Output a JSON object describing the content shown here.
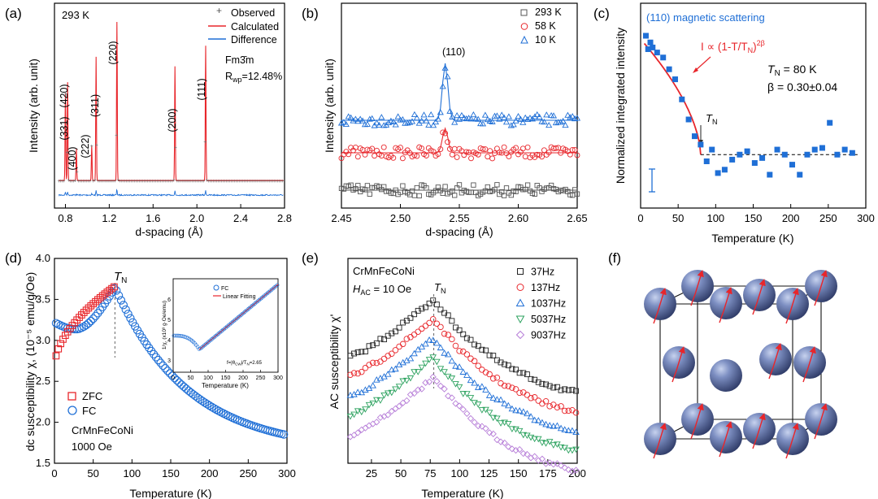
{
  "panels": {
    "a": {
      "label": "(a)",
      "temp": "293 K",
      "legend": [
        "Observed",
        "Calculated",
        "Difference"
      ],
      "space_group": "Fm3̄m",
      "rwp": "R",
      "rwp_sub": "wp",
      "rwp_val": "=12.48%",
      "peaks": [
        "(420)",
        "(331)",
        "(400)",
        "(222)",
        "(311)",
        "(220)",
        "(200)",
        "(111)"
      ]
    },
    "b": {
      "label": "(b)",
      "peak": "(110)"
    },
    "c": {
      "label": "(c)",
      "title": "(110) magnetic scattering",
      "fit_label": "I ∝ (1-T/T",
      "fit_sub": "N",
      "fit_sup": ")",
      "fit_exp": "2β",
      "tn_text": "T",
      "tn_sub": "N",
      "tn_val": " = 80 K",
      "beta_text": "β = 0.30±0.04"
    },
    "d": {
      "label": "(d)",
      "tn": "T",
      "tn_sub": "N",
      "legend": [
        "ZFC",
        "FC"
      ],
      "sample": "CrMnFeCoNi",
      "field": "1000 Oe",
      "inset": {
        "legend": [
          "FC",
          "Linear Fitting"
        ],
        "ylabel": "1/χ, (x10³ g·Oe/emu)",
        "xlabel": "Temperature (K)",
        "formula": "f=|θ",
        "formula_sub": "CW",
        "formula_mid": "|/T",
        "formula_sub2": "N",
        "formula_end": "=2.65"
      }
    },
    "e": {
      "label": "(e)",
      "sample": "CrMnFeCoNi",
      "field": "H",
      "field_sub": "AC",
      "field_val": " = 10 Oe",
      "tn": "T",
      "tn_sub": "N",
      "legend": [
        "37Hz",
        "137Hz",
        "1037Hz",
        "5037Hz",
        "9037Hz"
      ]
    },
    "f": {
      "label": "(f)"
    }
  },
  "colors": {
    "red": "#e8262b",
    "blue": "#1f6fd6",
    "black": "#222222",
    "gray": "#555555",
    "green": "#2ca25f",
    "purple": "#b77ed8",
    "sq_blue": "#1f6fd6",
    "atom": "#6b7fae"
  },
  "chart_data": [
    {
      "type": "line",
      "id": "a",
      "xlabel": "d-spacing (Å)",
      "ylabel": "Intensity (arb. unit)",
      "xlim": [
        0.7,
        2.8
      ],
      "xticks": [
        0.8,
        1.2,
        1.6,
        2.0,
        2.4,
        2.8
      ],
      "series": [
        {
          "name": "Observed"
        },
        {
          "name": "Calculated"
        },
        {
          "name": "Difference"
        }
      ],
      "peaks": [
        {
          "x": 0.8,
          "h": 0.55
        },
        {
          "x": 0.82,
          "h": 0.62
        },
        {
          "x": 0.9,
          "h": 0.2
        },
        {
          "x": 1.04,
          "h": 0.22
        },
        {
          "x": 1.08,
          "h": 0.78
        },
        {
          "x": 1.27,
          "h": 1.0
        },
        {
          "x": 1.8,
          "h": 0.72
        },
        {
          "x": 2.08,
          "h": 0.85
        }
      ]
    },
    {
      "type": "scatter",
      "id": "b",
      "xlabel": "d-spacing (Å)",
      "ylabel": "Intensity (arb. unit)",
      "xlim": [
        2.45,
        2.65
      ],
      "xticks": [
        2.45,
        2.5,
        2.55,
        2.6,
        2.65
      ],
      "series": [
        {
          "name": "293 K",
          "offset": 0.1,
          "peak": 0
        },
        {
          "name": "58 K",
          "offset": 0.42,
          "peak": 0.14
        },
        {
          "name": "10 K",
          "offset": 0.68,
          "peak": 0.3
        }
      ],
      "peak_x": 2.538
    },
    {
      "type": "scatter",
      "id": "c",
      "xlabel": "Temperature (K)",
      "ylabel": "Normalized integrated intensity",
      "xlim": [
        0,
        300
      ],
      "xticks": [
        0,
        50,
        100,
        150,
        200,
        250,
        300
      ],
      "x": [
        7,
        10,
        13,
        16,
        22,
        30,
        38,
        46,
        55,
        64,
        72,
        80,
        88,
        95,
        103,
        112,
        122,
        132,
        142,
        152,
        162,
        172,
        182,
        192,
        202,
        212,
        222,
        232,
        242,
        252,
        262,
        272,
        282
      ],
      "y": [
        1.0,
        0.92,
        0.96,
        0.93,
        0.9,
        0.87,
        0.8,
        0.74,
        0.62,
        0.5,
        0.4,
        0.35,
        0.25,
        0.32,
        0.18,
        0.2,
        0.26,
        0.29,
        0.31,
        0.24,
        0.27,
        0.17,
        0.32,
        0.29,
        0.23,
        0.17,
        0.29,
        0.32,
        0.33,
        0.48,
        0.29,
        0.32,
        0.3
      ],
      "tn": 80,
      "baseline": 0.29
    },
    {
      "type": "scatter",
      "id": "d",
      "xlabel": "Temperature (K)",
      "ylabel": "dc susceptibility χ, (10⁻⁵ emu/g/Oe)",
      "xlim": [
        0,
        300
      ],
      "ylim": [
        1.5,
        4.0
      ],
      "xticks": [
        0,
        50,
        100,
        150,
        200,
        250,
        300
      ],
      "yticks": [
        1.5,
        2.0,
        2.5,
        3.0,
        3.5,
        4.0
      ],
      "tn": 78,
      "series": [
        {
          "name": "ZFC"
        },
        {
          "name": "FC"
        }
      ]
    },
    {
      "type": "scatter",
      "id": "e",
      "xlabel": "Temperature (K)",
      "ylabel": "AC susceptibility χ'",
      "xlim": [
        5,
        200
      ],
      "xticks": [
        25,
        50,
        75,
        100,
        125,
        150,
        175,
        200
      ],
      "tn": 78,
      "series": [
        {
          "name": "37Hz",
          "offset": 0.0
        },
        {
          "name": "137Hz",
          "offset": 0.08
        },
        {
          "name": "1037Hz",
          "offset": 0.16
        },
        {
          "name": "5037Hz",
          "offset": 0.24
        },
        {
          "name": "9037Hz",
          "offset": 0.32
        }
      ]
    }
  ]
}
